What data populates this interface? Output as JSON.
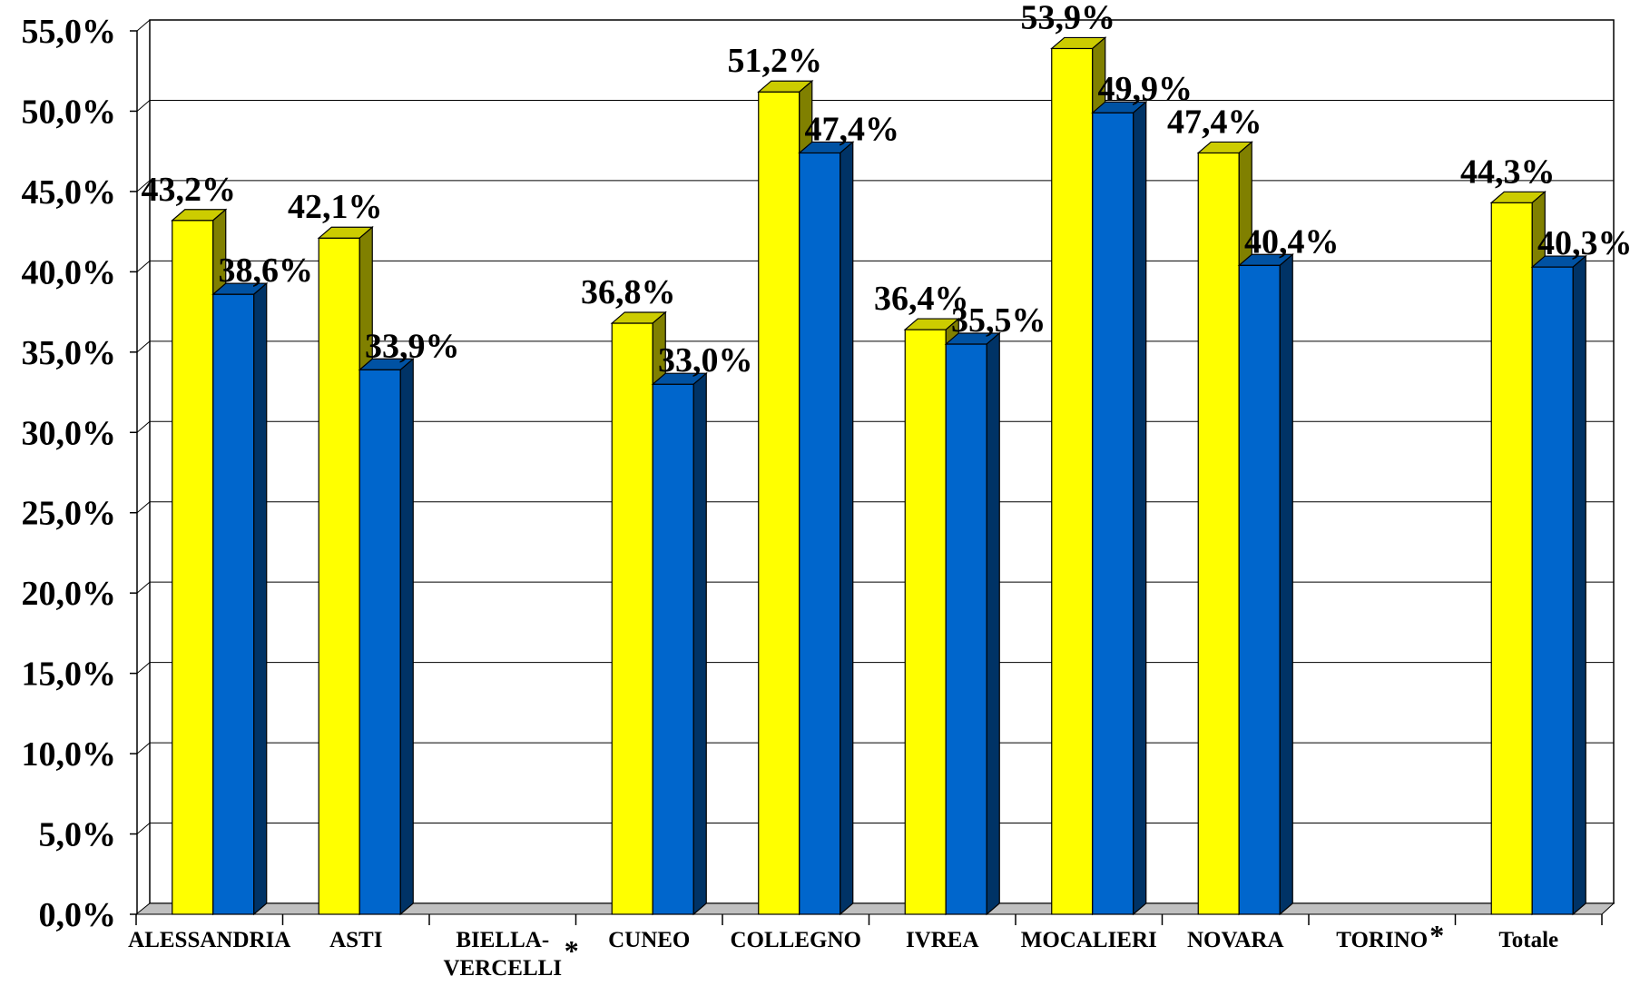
{
  "chart_data": {
    "type": "bar",
    "categories": [
      "ALESSANDRIA",
      "ASTI",
      "BIELLA-\nVERCELLI",
      "CUNEO",
      "COLLEGNO",
      "IVREA",
      "MOCALIERI",
      "NOVARA",
      "TORINO",
      "Totale"
    ],
    "category_asterisks": [
      false,
      false,
      true,
      false,
      false,
      false,
      false,
      false,
      true,
      false
    ],
    "series": [
      {
        "values": [
          43.2,
          42.1,
          null,
          36.8,
          51.2,
          36.4,
          53.9,
          47.4,
          null,
          44.3
        ]
      },
      {
        "values": [
          38.6,
          33.9,
          null,
          33.0,
          47.4,
          35.5,
          49.9,
          40.4,
          null,
          40.3
        ]
      }
    ],
    "data_labels": [
      [
        "43,2%",
        "42,1%",
        "",
        "36,8%",
        "51,2%",
        "36,4%",
        "53,9%",
        "47,4%",
        "",
        "44,3%"
      ],
      [
        "38,6%",
        "33,9%",
        "",
        "33,0%",
        "47,4%",
        "35,5%",
        "49,9%",
        "40,4%",
        "",
        "40,3%"
      ]
    ],
    "yticks": [
      "0,0%",
      "5,0%",
      "10,0%",
      "15,0%",
      "20,0%",
      "25,0%",
      "30,0%",
      "35,0%",
      "40,0%",
      "45,0%",
      "50,0%",
      "55,0%"
    ],
    "ylim": [
      0,
      55
    ],
    "grid": true,
    "title": "",
    "xlabel": "",
    "ylabel": "",
    "colors": {
      "series1_front": "#FFFF00",
      "series1_top": "#CCCC00",
      "series1_side": "#808000",
      "series2_front": "#0066CC",
      "series2_top": "#0052A3",
      "series2_side": "#003366",
      "floor": "#C0C0C0",
      "grid": "#000000"
    }
  }
}
